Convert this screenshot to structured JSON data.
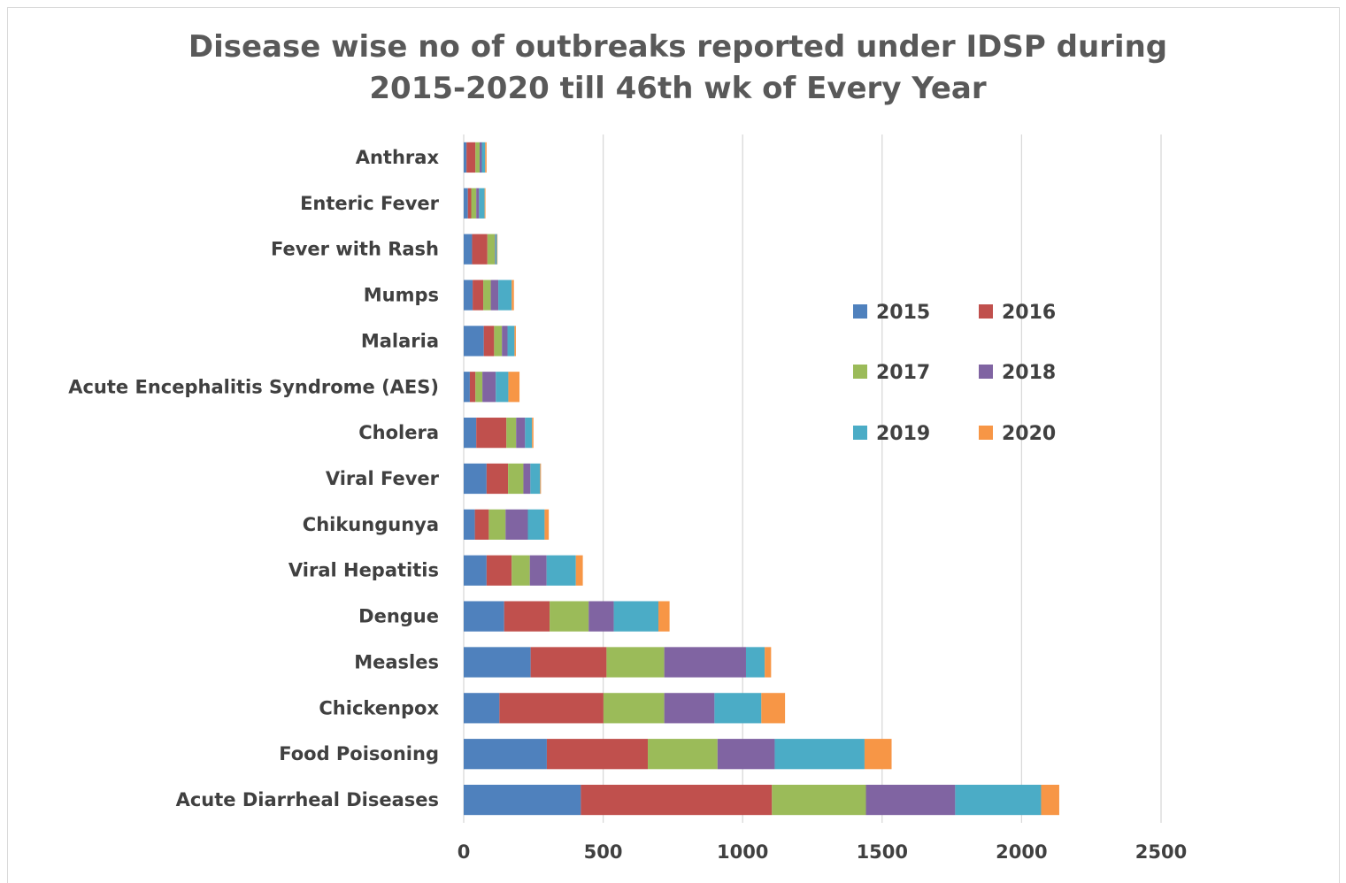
{
  "chart_data": {
    "type": "bar",
    "orientation": "horizontal",
    "stacked": true,
    "title": "Disease wise no of outbreaks reported under IDSP during 2015-2020 till 46th wk of Every Year",
    "title_lines": [
      "Disease wise no of outbreaks reported under IDSP during",
      "2015-2020 till 46th wk of Every Year"
    ],
    "xlabel": "",
    "ylabel": "",
    "xlim": [
      0,
      2500
    ],
    "xticks": [
      0,
      500,
      1000,
      1500,
      2000,
      2500
    ],
    "grid": "vertical",
    "legend_position": "right",
    "categories": [
      "Anthrax",
      "Enteric Fever",
      "Fever with Rash",
      "Mumps",
      "Malaria",
      "Acute Encephalitis Syndrome (AES)",
      "Cholera",
      "Viral Fever",
      "Chikungunya",
      "Viral Hepatitis",
      "Dengue",
      "Measles",
      "Chickenpox",
      "Food Poisoning",
      "Acute Diarrheal Diseases"
    ],
    "series": [
      {
        "name": "2015",
        "color": "#4f81bd",
        "values": [
          10,
          15,
          30,
          32,
          72,
          22,
          45,
          82,
          40,
          82,
          145,
          240,
          128,
          298,
          420
        ]
      },
      {
        "name": "2016",
        "color": "#c0504d",
        "values": [
          32,
          12,
          55,
          38,
          37,
          20,
          108,
          77,
          50,
          90,
          163,
          272,
          373,
          362,
          685
        ]
      },
      {
        "name": "2017",
        "color": "#9bbb59",
        "values": [
          15,
          18,
          27,
          27,
          28,
          25,
          35,
          55,
          60,
          65,
          140,
          207,
          218,
          250,
          337
        ]
      },
      {
        "name": "2018",
        "color": "#8064a2",
        "values": [
          8,
          10,
          2,
          27,
          20,
          48,
          32,
          25,
          80,
          60,
          90,
          293,
          180,
          205,
          320
        ]
      },
      {
        "name": "2019",
        "color": "#4bacc6",
        "values": [
          12,
          20,
          5,
          48,
          25,
          45,
          25,
          35,
          60,
          105,
          160,
          67,
          168,
          322,
          308
        ]
      },
      {
        "name": "2020",
        "color": "#f79646",
        "values": [
          5,
          3,
          2,
          8,
          5,
          40,
          5,
          3,
          15,
          25,
          40,
          23,
          85,
          97,
          65
        ]
      }
    ]
  }
}
